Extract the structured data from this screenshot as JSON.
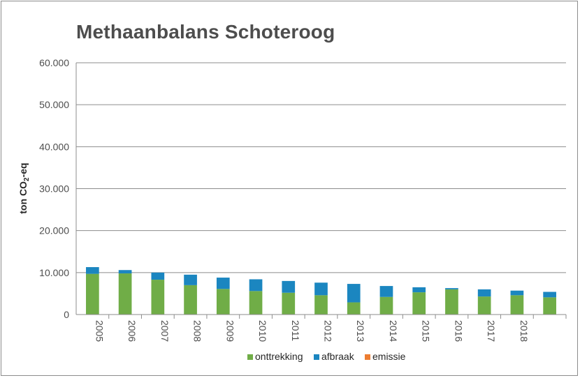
{
  "chart_data": {
    "type": "bar",
    "stacked": true,
    "title": "Methaanbalans Schoteroog",
    "ylabel_main": "ton CO",
    "ylabel_sub": "2",
    "ylabel_tail": "-eq",
    "ylim": [
      0,
      60000
    ],
    "yticks": [
      "0",
      "10.000",
      "20.000",
      "30.000",
      "40.000",
      "50.000",
      "60.000"
    ],
    "ytick_values": [
      0,
      10000,
      20000,
      30000,
      40000,
      50000,
      60000
    ],
    "grid": true,
    "legend_position": "bottom",
    "categories": [
      "2005",
      "2006",
      "2007",
      "2008",
      "2009",
      "2010",
      "2011",
      "2012",
      "2013",
      "2014",
      "2015",
      "2016",
      "2017",
      "2018",
      ""
    ],
    "series": [
      {
        "name": "onttrekking",
        "color": "#70ad47",
        "values": [
          9700,
          9800,
          8300,
          7000,
          6100,
          5600,
          5200,
          4600,
          2900,
          4200,
          5300,
          6000,
          4300,
          4600,
          4100
        ]
      },
      {
        "name": "afbraak",
        "color": "#1b86c0",
        "values": [
          1600,
          800,
          1700,
          2500,
          2700,
          2800,
          2800,
          3000,
          4400,
          2600,
          1200,
          300,
          1700,
          1100,
          1300
        ]
      },
      {
        "name": "emissie",
        "color": "#ed7d31",
        "values": [
          0,
          0,
          0,
          0,
          0,
          0,
          0,
          0,
          0,
          0,
          0,
          0,
          0,
          0,
          0
        ]
      }
    ]
  }
}
